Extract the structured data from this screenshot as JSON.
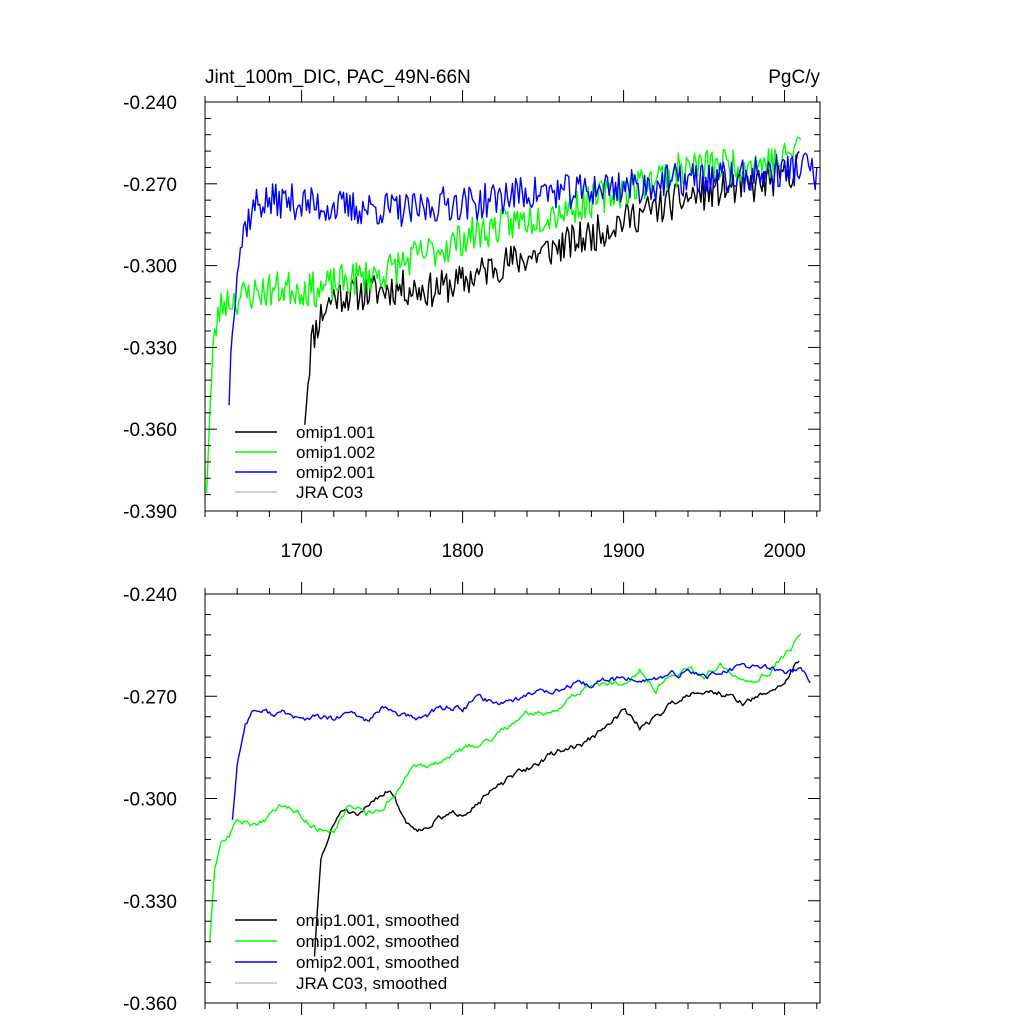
{
  "chart_data": [
    {
      "id": "raw",
      "type": "line",
      "title": "Jint_100m_DIC, PAC_49N-66N",
      "units": "PgC/y",
      "xlabel": "",
      "ylabel": "",
      "xlim": [
        1640,
        2022
      ],
      "ylim": [
        -0.39,
        -0.24
      ],
      "x_ticks": [
        1700,
        1800,
        1900,
        2000
      ],
      "x_tick_labels": [
        "1700",
        "1800",
        "1900",
        "2000"
      ],
      "y_ticks": [
        -0.39,
        -0.36,
        -0.33,
        -0.3,
        -0.27,
        -0.24
      ],
      "y_tick_labels": [
        "-0.390",
        "-0.360",
        "-0.330",
        "-0.300",
        "-0.270",
        "-0.240"
      ],
      "legend_position": "bottom-left",
      "legend": [
        "omip1.001",
        "omip1.002",
        "omip2.001",
        "JRA C03"
      ],
      "series": [
        {
          "name": "omip1.001",
          "color": "#000000",
          "noise": 0.0065,
          "seed": 11,
          "x": [
            1702,
            1706,
            1712,
            1720,
            1740,
            1760,
            1780,
            1800,
            1820,
            1840,
            1860,
            1880,
            1900,
            1920,
            1940,
            1960,
            1980,
            2000,
            2009
          ],
          "y": [
            -0.355,
            -0.328,
            -0.318,
            -0.311,
            -0.31,
            -0.308,
            -0.309,
            -0.306,
            -0.3,
            -0.297,
            -0.293,
            -0.289,
            -0.283,
            -0.279,
            -0.275,
            -0.272,
            -0.271,
            -0.267,
            -0.263
          ]
        },
        {
          "name": "omip1.002",
          "color": "#00ff00",
          "noise": 0.0065,
          "seed": 23,
          "x": [
            1641,
            1643,
            1645,
            1648,
            1652,
            1660,
            1670,
            1690,
            1710,
            1730,
            1750,
            1770,
            1790,
            1800,
            1820,
            1840,
            1860,
            1880,
            1900,
            1920,
            1940,
            1960,
            1980,
            2000,
            2010
          ],
          "y": [
            -0.38,
            -0.355,
            -0.332,
            -0.318,
            -0.313,
            -0.312,
            -0.31,
            -0.308,
            -0.309,
            -0.305,
            -0.303,
            -0.297,
            -0.293,
            -0.29,
            -0.286,
            -0.283,
            -0.28,
            -0.276,
            -0.272,
            -0.268,
            -0.264,
            -0.263,
            -0.263,
            -0.261,
            -0.254
          ]
        },
        {
          "name": "omip2.001",
          "color": "#0000ff",
          "noise": 0.0065,
          "seed": 37,
          "x": [
            1655,
            1657,
            1660,
            1665,
            1672,
            1690,
            1710,
            1730,
            1750,
            1770,
            1790,
            1810,
            1830,
            1850,
            1870,
            1890,
            1910,
            1930,
            1950,
            1970,
            1990,
            2000,
            2010,
            2016,
            2020
          ],
          "y": [
            -0.348,
            -0.32,
            -0.3,
            -0.285,
            -0.277,
            -0.276,
            -0.278,
            -0.279,
            -0.279,
            -0.28,
            -0.277,
            -0.277,
            -0.274,
            -0.273,
            -0.273,
            -0.271,
            -0.271,
            -0.269,
            -0.268,
            -0.268,
            -0.266,
            -0.265,
            -0.264,
            -0.263,
            -0.27
          ]
        },
        {
          "name": "JRA C03",
          "color": "#bfbfbf",
          "x": [],
          "y": []
        }
      ]
    },
    {
      "id": "smoothed",
      "type": "line",
      "title": "",
      "xlabel": "",
      "ylabel": "",
      "xlim": [
        1640,
        2022
      ],
      "ylim": [
        -0.36,
        -0.24
      ],
      "x_ticks": [
        1700,
        1800,
        1900,
        2000
      ],
      "x_tick_labels": [],
      "y_ticks": [
        -0.36,
        -0.33,
        -0.3,
        -0.27,
        -0.24
      ],
      "y_tick_labels": [
        "-0.360",
        "-0.330",
        "-0.300",
        "-0.270",
        "-0.240"
      ],
      "legend_position": "bottom-left",
      "legend": [
        "omip1.001, smoothed",
        "omip1.002, smoothed",
        "omip2.001, smoothed",
        "JRA C03, smoothed"
      ],
      "series": [
        {
          "name": "omip1.001, smoothed",
          "color": "#000000",
          "noise": 0.0012,
          "seed": 51,
          "x": [
            1708,
            1712,
            1718,
            1725,
            1735,
            1745,
            1755,
            1765,
            1775,
            1785,
            1800,
            1815,
            1830,
            1845,
            1860,
            1875,
            1890,
            1900,
            1910,
            1920,
            1930,
            1945,
            1960,
            1975,
            1985,
            2000,
            2009
          ],
          "y": [
            -0.346,
            -0.318,
            -0.31,
            -0.303,
            -0.306,
            -0.3,
            -0.297,
            -0.307,
            -0.309,
            -0.306,
            -0.304,
            -0.299,
            -0.294,
            -0.29,
            -0.286,
            -0.284,
            -0.279,
            -0.274,
            -0.279,
            -0.276,
            -0.272,
            -0.268,
            -0.269,
            -0.272,
            -0.27,
            -0.266,
            -0.259
          ]
        },
        {
          "name": "omip1.002, smoothed",
          "color": "#00ff00",
          "noise": 0.0012,
          "seed": 63,
          "x": [
            1643,
            1646,
            1650,
            1655,
            1660,
            1670,
            1680,
            1690,
            1700,
            1710,
            1720,
            1730,
            1740,
            1750,
            1760,
            1770,
            1780,
            1790,
            1800,
            1810,
            1820,
            1830,
            1840,
            1850,
            1860,
            1870,
            1880,
            1890,
            1900,
            1910,
            1920,
            1930,
            1940,
            1950,
            1960,
            1970,
            1980,
            1990,
            2000,
            2010
          ],
          "y": [
            -0.342,
            -0.322,
            -0.313,
            -0.311,
            -0.306,
            -0.308,
            -0.305,
            -0.301,
            -0.305,
            -0.309,
            -0.309,
            -0.301,
            -0.305,
            -0.303,
            -0.297,
            -0.29,
            -0.291,
            -0.288,
            -0.286,
            -0.284,
            -0.282,
            -0.278,
            -0.275,
            -0.275,
            -0.273,
            -0.27,
            -0.266,
            -0.267,
            -0.266,
            -0.262,
            -0.268,
            -0.263,
            -0.262,
            -0.264,
            -0.261,
            -0.263,
            -0.265,
            -0.263,
            -0.258,
            -0.252
          ]
        },
        {
          "name": "omip2.001, smoothed",
          "color": "#0000ff",
          "noise": 0.0012,
          "seed": 77,
          "x": [
            1657,
            1660,
            1665,
            1670,
            1680,
            1690,
            1700,
            1710,
            1720,
            1730,
            1740,
            1750,
            1760,
            1770,
            1780,
            1790,
            1800,
            1810,
            1820,
            1830,
            1840,
            1850,
            1860,
            1870,
            1880,
            1890,
            1900,
            1910,
            1920,
            1930,
            1940,
            1950,
            1960,
            1970,
            1980,
            1990,
            2000,
            2010,
            2016
          ],
          "y": [
            -0.306,
            -0.29,
            -0.278,
            -0.274,
            -0.275,
            -0.275,
            -0.277,
            -0.276,
            -0.277,
            -0.275,
            -0.277,
            -0.274,
            -0.275,
            -0.277,
            -0.275,
            -0.273,
            -0.274,
            -0.27,
            -0.272,
            -0.271,
            -0.27,
            -0.268,
            -0.268,
            -0.267,
            -0.267,
            -0.265,
            -0.265,
            -0.265,
            -0.265,
            -0.264,
            -0.263,
            -0.264,
            -0.263,
            -0.262,
            -0.261,
            -0.262,
            -0.263,
            -0.262,
            -0.265
          ]
        },
        {
          "name": "JRA C03, smoothed",
          "color": "#bfbfbf",
          "x": [],
          "y": []
        }
      ]
    }
  ]
}
